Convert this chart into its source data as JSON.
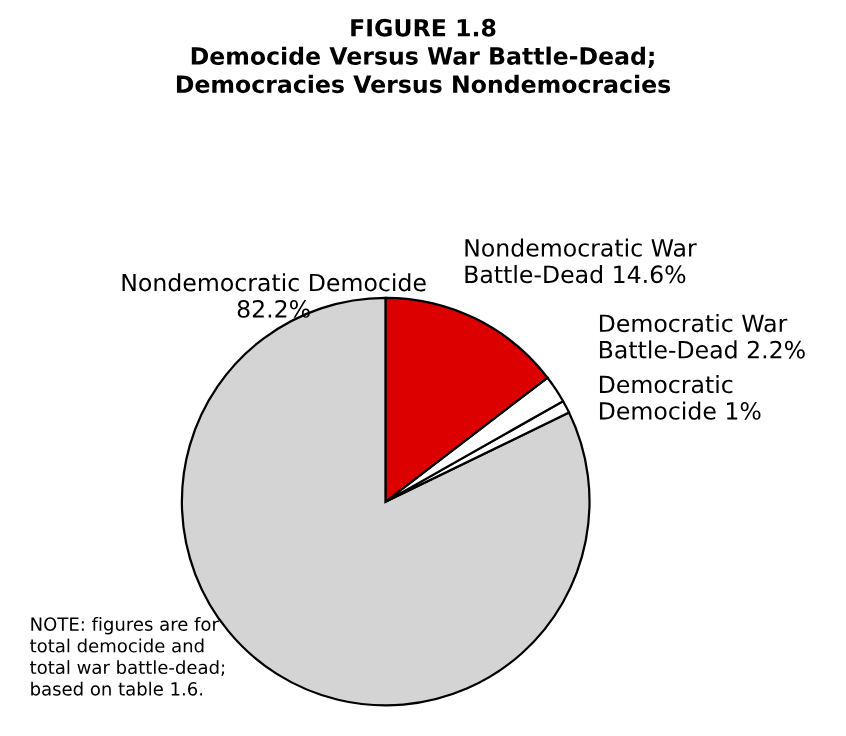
{
  "chart_data": {
    "type": "pie",
    "title": "FIGURE 1.8\nDemocide Versus War Battle-Dead;\nDemocracies Versus Nondemocracies",
    "categories": [
      "Nondemocratic Democide",
      "Democratic\nDemocide",
      "Democratic War\nBattle-Dead",
      "Nondemocratic War\nBattle-Dead"
    ],
    "values": [
      82.2,
      1,
      2.2,
      14.6
    ],
    "value_labels": [
      "82.2%",
      "1%",
      "2.2%",
      "14.6%"
    ],
    "colors": [
      "#d4d4d4",
      "#ffffff",
      "#ffffff",
      "#dd0000"
    ],
    "annotations": [
      "NOTE: figures are for\ntotal democide and\ntotal war battle-dead;\nbased on table 1.6."
    ]
  }
}
